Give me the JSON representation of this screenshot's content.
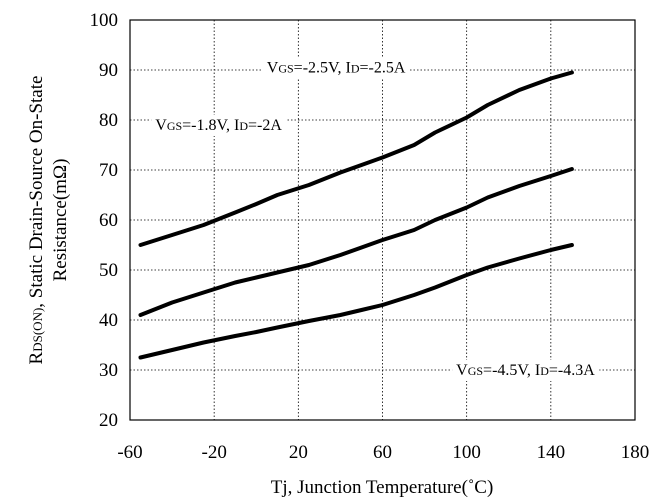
{
  "chart_data": {
    "type": "line",
    "xlabel": "Tj, Junction Temperature(˚C)",
    "ylabel": {
      "line1_parts": [
        "R",
        "DS(ON)",
        ", Static Drain-Source On-State"
      ],
      "line2": "Resistance(mΩ)"
    },
    "xlim": [
      -60,
      180
    ],
    "ylim": [
      20,
      100
    ],
    "xticks": [
      -60,
      -20,
      20,
      60,
      100,
      140,
      180
    ],
    "yticks": [
      20,
      30,
      40,
      50,
      60,
      70,
      80,
      90,
      100
    ],
    "xtick_labels": [
      "-60",
      "-20",
      "20",
      "60",
      "100",
      "140",
      "180"
    ],
    "ytick_labels": [
      "20",
      "30",
      "40",
      "50",
      "60",
      "70",
      "80",
      "90",
      "100"
    ],
    "grid": true,
    "series": [
      {
        "name": "VGS=-2.5V, ID=-2.5A",
        "x": [
          -55,
          -40,
          -25,
          -10,
          0,
          10,
          25,
          40,
          50,
          60,
          75,
          85,
          100,
          110,
          125,
          140,
          150
        ],
        "y": [
          55,
          57,
          59,
          61.5,
          63.2,
          65,
          67,
          69.5,
          71,
          72.5,
          75,
          77.5,
          80.5,
          83,
          86,
          88.3,
          89.5
        ]
      },
      {
        "name": "VGS=-1.8V, ID=-2A",
        "x": [
          -55,
          -40,
          -25,
          -10,
          0,
          10,
          25,
          40,
          50,
          60,
          75,
          85,
          100,
          110,
          125,
          140,
          150
        ],
        "y": [
          41,
          43.5,
          45.5,
          47.5,
          48.5,
          49.5,
          51,
          53,
          54.5,
          56,
          58,
          60,
          62.5,
          64.5,
          66.8,
          68.8,
          70.2
        ]
      },
      {
        "name": "VGS=-4.5V, ID=-4.3A",
        "x": [
          -55,
          -40,
          -25,
          -10,
          0,
          10,
          25,
          40,
          50,
          60,
          75,
          85,
          100,
          110,
          125,
          140,
          150
        ],
        "y": [
          32.5,
          34,
          35.5,
          36.8,
          37.6,
          38.5,
          39.8,
          41,
          42,
          43,
          45,
          46.5,
          49,
          50.5,
          52.3,
          54,
          55
        ]
      }
    ],
    "annotations": [
      {
        "series": 0,
        "v_main": "V",
        "v_sub": "GS",
        "v_rest": "=-2.5V, ",
        "i_main": "I",
        "i_sub": "D",
        "i_rest": "=-2.5A"
      },
      {
        "series": 1,
        "v_main": "V",
        "v_sub": "GS",
        "v_rest": "=-1.8V, ",
        "i_main": "I",
        "i_sub": "D",
        "i_rest": "=-2A"
      },
      {
        "series": 2,
        "v_main": "V",
        "v_sub": "GS",
        "v_rest": "=-4.5V, ",
        "i_main": "I",
        "i_sub": "D",
        "i_rest": "=-4.3A"
      }
    ]
  }
}
